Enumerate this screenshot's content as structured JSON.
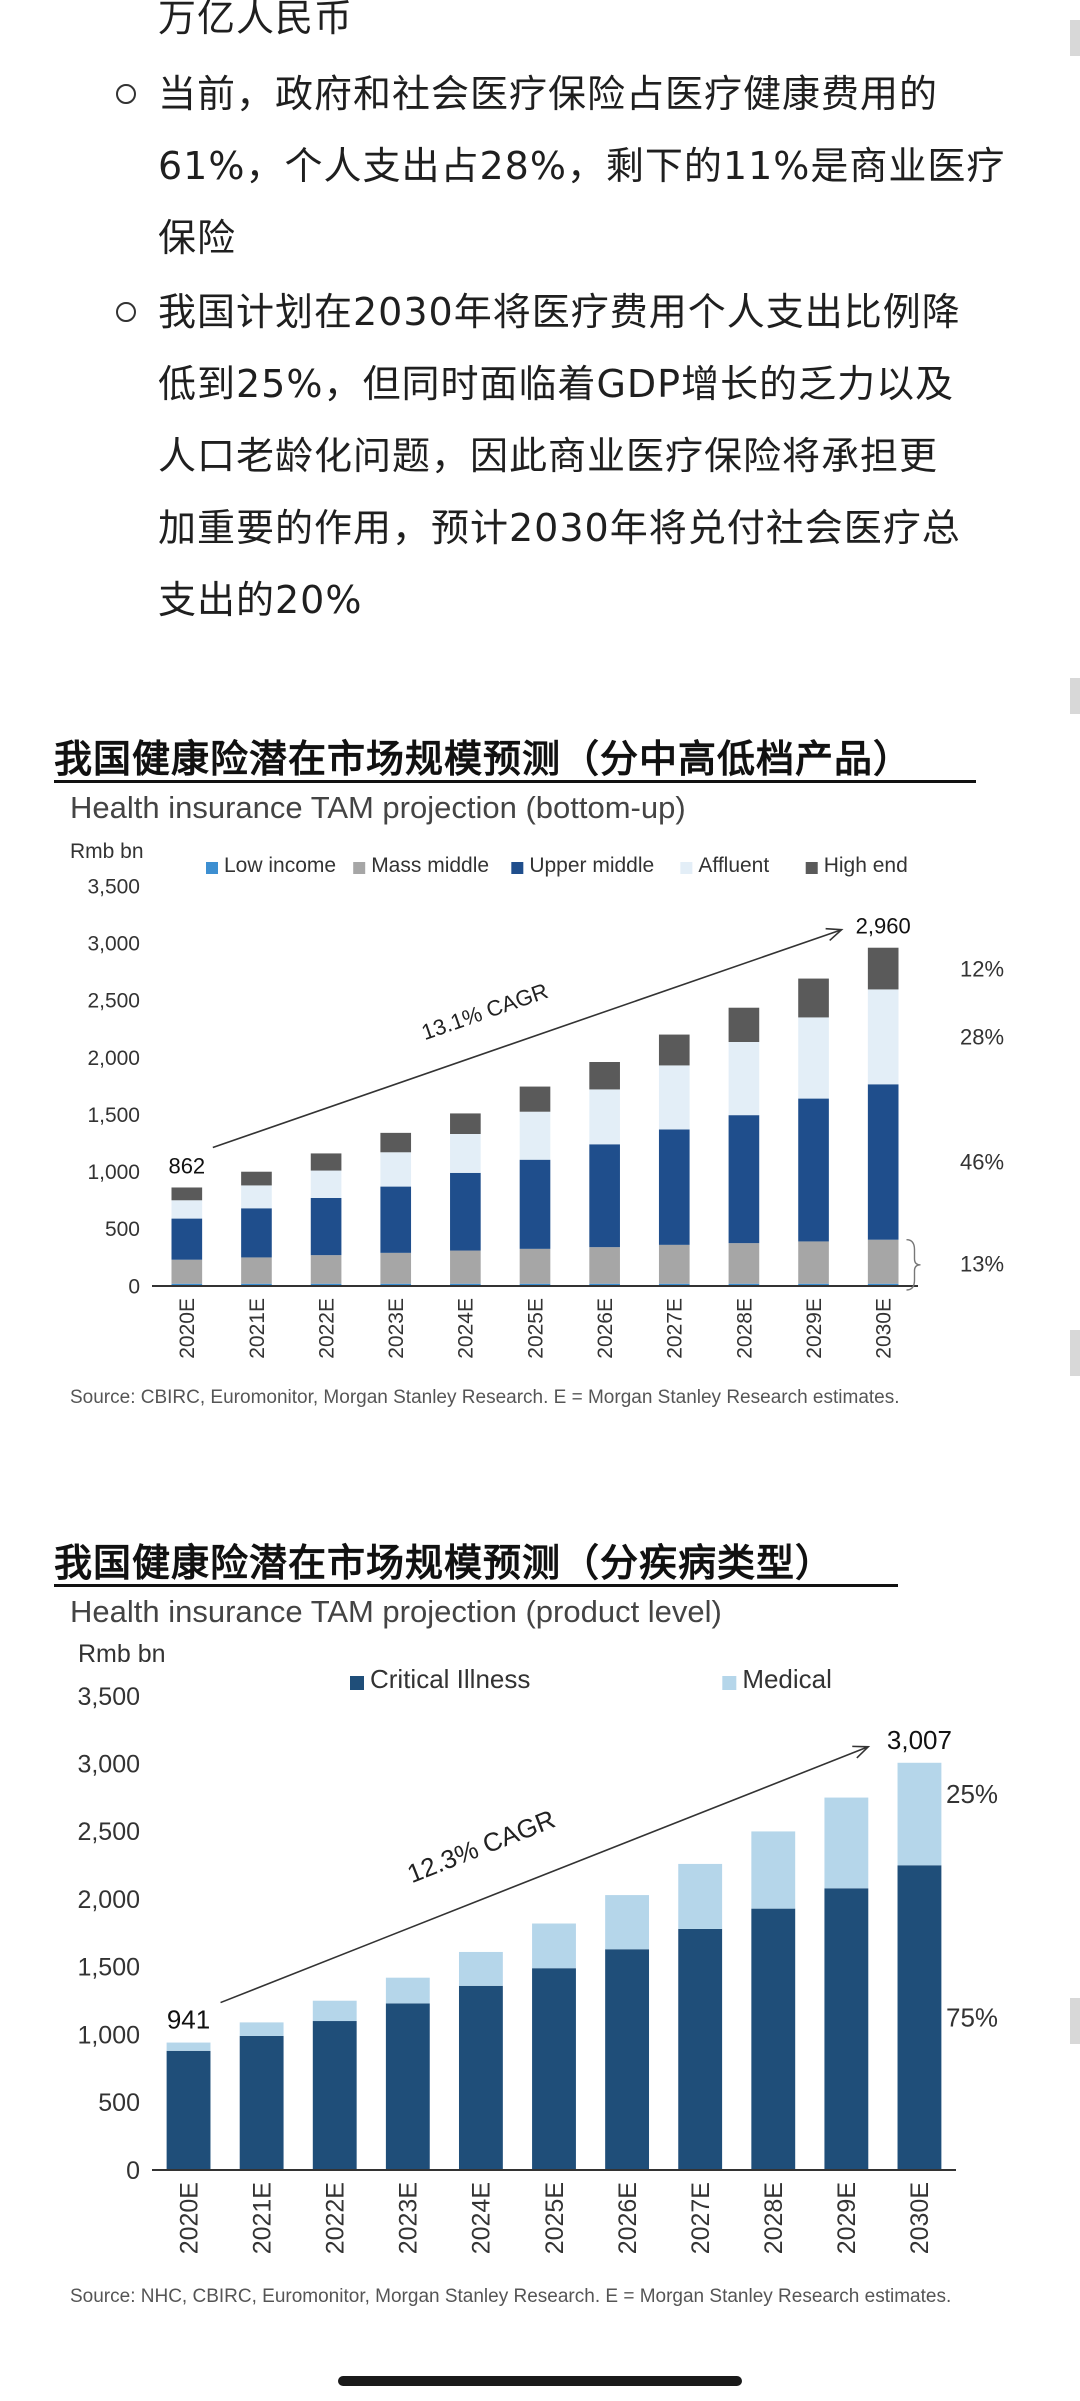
{
  "article": {
    "line0": "万亿人民币",
    "bullet1": [
      "当前，政府和社会医疗保险占医疗健康费用的",
      "61%，个人支出占28%，剩下的11%是商业医疗",
      "保险"
    ],
    "bullet2": [
      "我国计划在2030年将医疗费用个人支出比例降",
      "低到25%，但同时面临着GDP增长的乏力以及",
      "人口老龄化问题，因此商业医疗保险将承担更",
      "加重要的作用，预计2030年将兑付社会医疗总",
      "支出的20%"
    ]
  },
  "chart1": {
    "heading": "我国健康险潜在市场规模预测（分中高低档产品）",
    "subtitle": "Health insurance TAM projection (bottom-up)",
    "source": "Source: CBIRC, Euromonitor, Morgan Stanley Research. E = Morgan Stanley Research estimates."
  },
  "chart2": {
    "heading": "我国健康险潜在市场规模预测（分疾病类型）",
    "subtitle": "Health insurance TAM projection (product level)",
    "source": "Source: NHC, CBIRC, Euromonitor, Morgan Stanley Research. E = Morgan Stanley Research estimates."
  },
  "chart_data": [
    {
      "type": "bar",
      "stacked": true,
      "title": "Health insurance TAM projection (bottom-up)",
      "ylabel": "Rmb bn",
      "ylim": [
        0,
        3500
      ],
      "yticks": [
        0,
        500,
        1000,
        1500,
        2000,
        2500,
        3000,
        3500
      ],
      "legend_position": "top",
      "categories": [
        "2020E",
        "2021E",
        "2022E",
        "2023E",
        "2024E",
        "2025E",
        "2026E",
        "2027E",
        "2028E",
        "2029E",
        "2030E"
      ],
      "series": [
        {
          "name": "Low income",
          "color": "#3d8fd1",
          "values": [
            20,
            20,
            20,
            20,
            20,
            20,
            20,
            20,
            20,
            20,
            20
          ]
        },
        {
          "name": "Mass middle",
          "color": "#a6a6a6",
          "values": [
            210,
            230,
            250,
            270,
            290,
            305,
            320,
            340,
            355,
            370,
            385
          ]
        },
        {
          "name": "Upper middle",
          "color": "#1f4e8c",
          "values": [
            360,
            430,
            500,
            580,
            680,
            780,
            900,
            1010,
            1120,
            1250,
            1360
          ]
        },
        {
          "name": "Affluent",
          "color": "#e3eef7",
          "values": [
            160,
            200,
            240,
            300,
            340,
            420,
            480,
            560,
            640,
            710,
            830
          ]
        },
        {
          "name": "High end",
          "color": "#5a5a5a",
          "values": [
            112,
            120,
            150,
            170,
            180,
            220,
            240,
            270,
            300,
            340,
            365
          ]
        }
      ],
      "annotations": {
        "start_total": "862",
        "end_total": "2,960",
        "cagr": "13.1% CAGR",
        "shares": [
          "12%",
          "28%",
          "46%",
          "13%"
        ]
      }
    },
    {
      "type": "bar",
      "stacked": true,
      "title": "Health insurance TAM projection (product level)",
      "ylabel": "Rmb bn",
      "ylim": [
        0,
        3500
      ],
      "yticks": [
        0,
        500,
        1000,
        1500,
        2000,
        2500,
        3000,
        3500
      ],
      "legend_position": "top",
      "categories": [
        "2020E",
        "2021E",
        "2022E",
        "2023E",
        "2024E",
        "2025E",
        "2026E",
        "2027E",
        "2028E",
        "2029E",
        "2030E"
      ],
      "series": [
        {
          "name": "Critical Illness",
          "color": "#1f4e79",
          "values": [
            880,
            990,
            1100,
            1230,
            1360,
            1490,
            1630,
            1780,
            1930,
            2080,
            2250
          ]
        },
        {
          "name": "Medical",
          "color": "#b5d6ea",
          "values": [
            61,
            100,
            150,
            190,
            250,
            330,
            400,
            480,
            570,
            670,
            757
          ]
        }
      ],
      "annotations": {
        "start_total": "941",
        "end_total": "3,007",
        "cagr": "12.3% CAGR",
        "shares": [
          "25%",
          "75%"
        ]
      }
    }
  ]
}
